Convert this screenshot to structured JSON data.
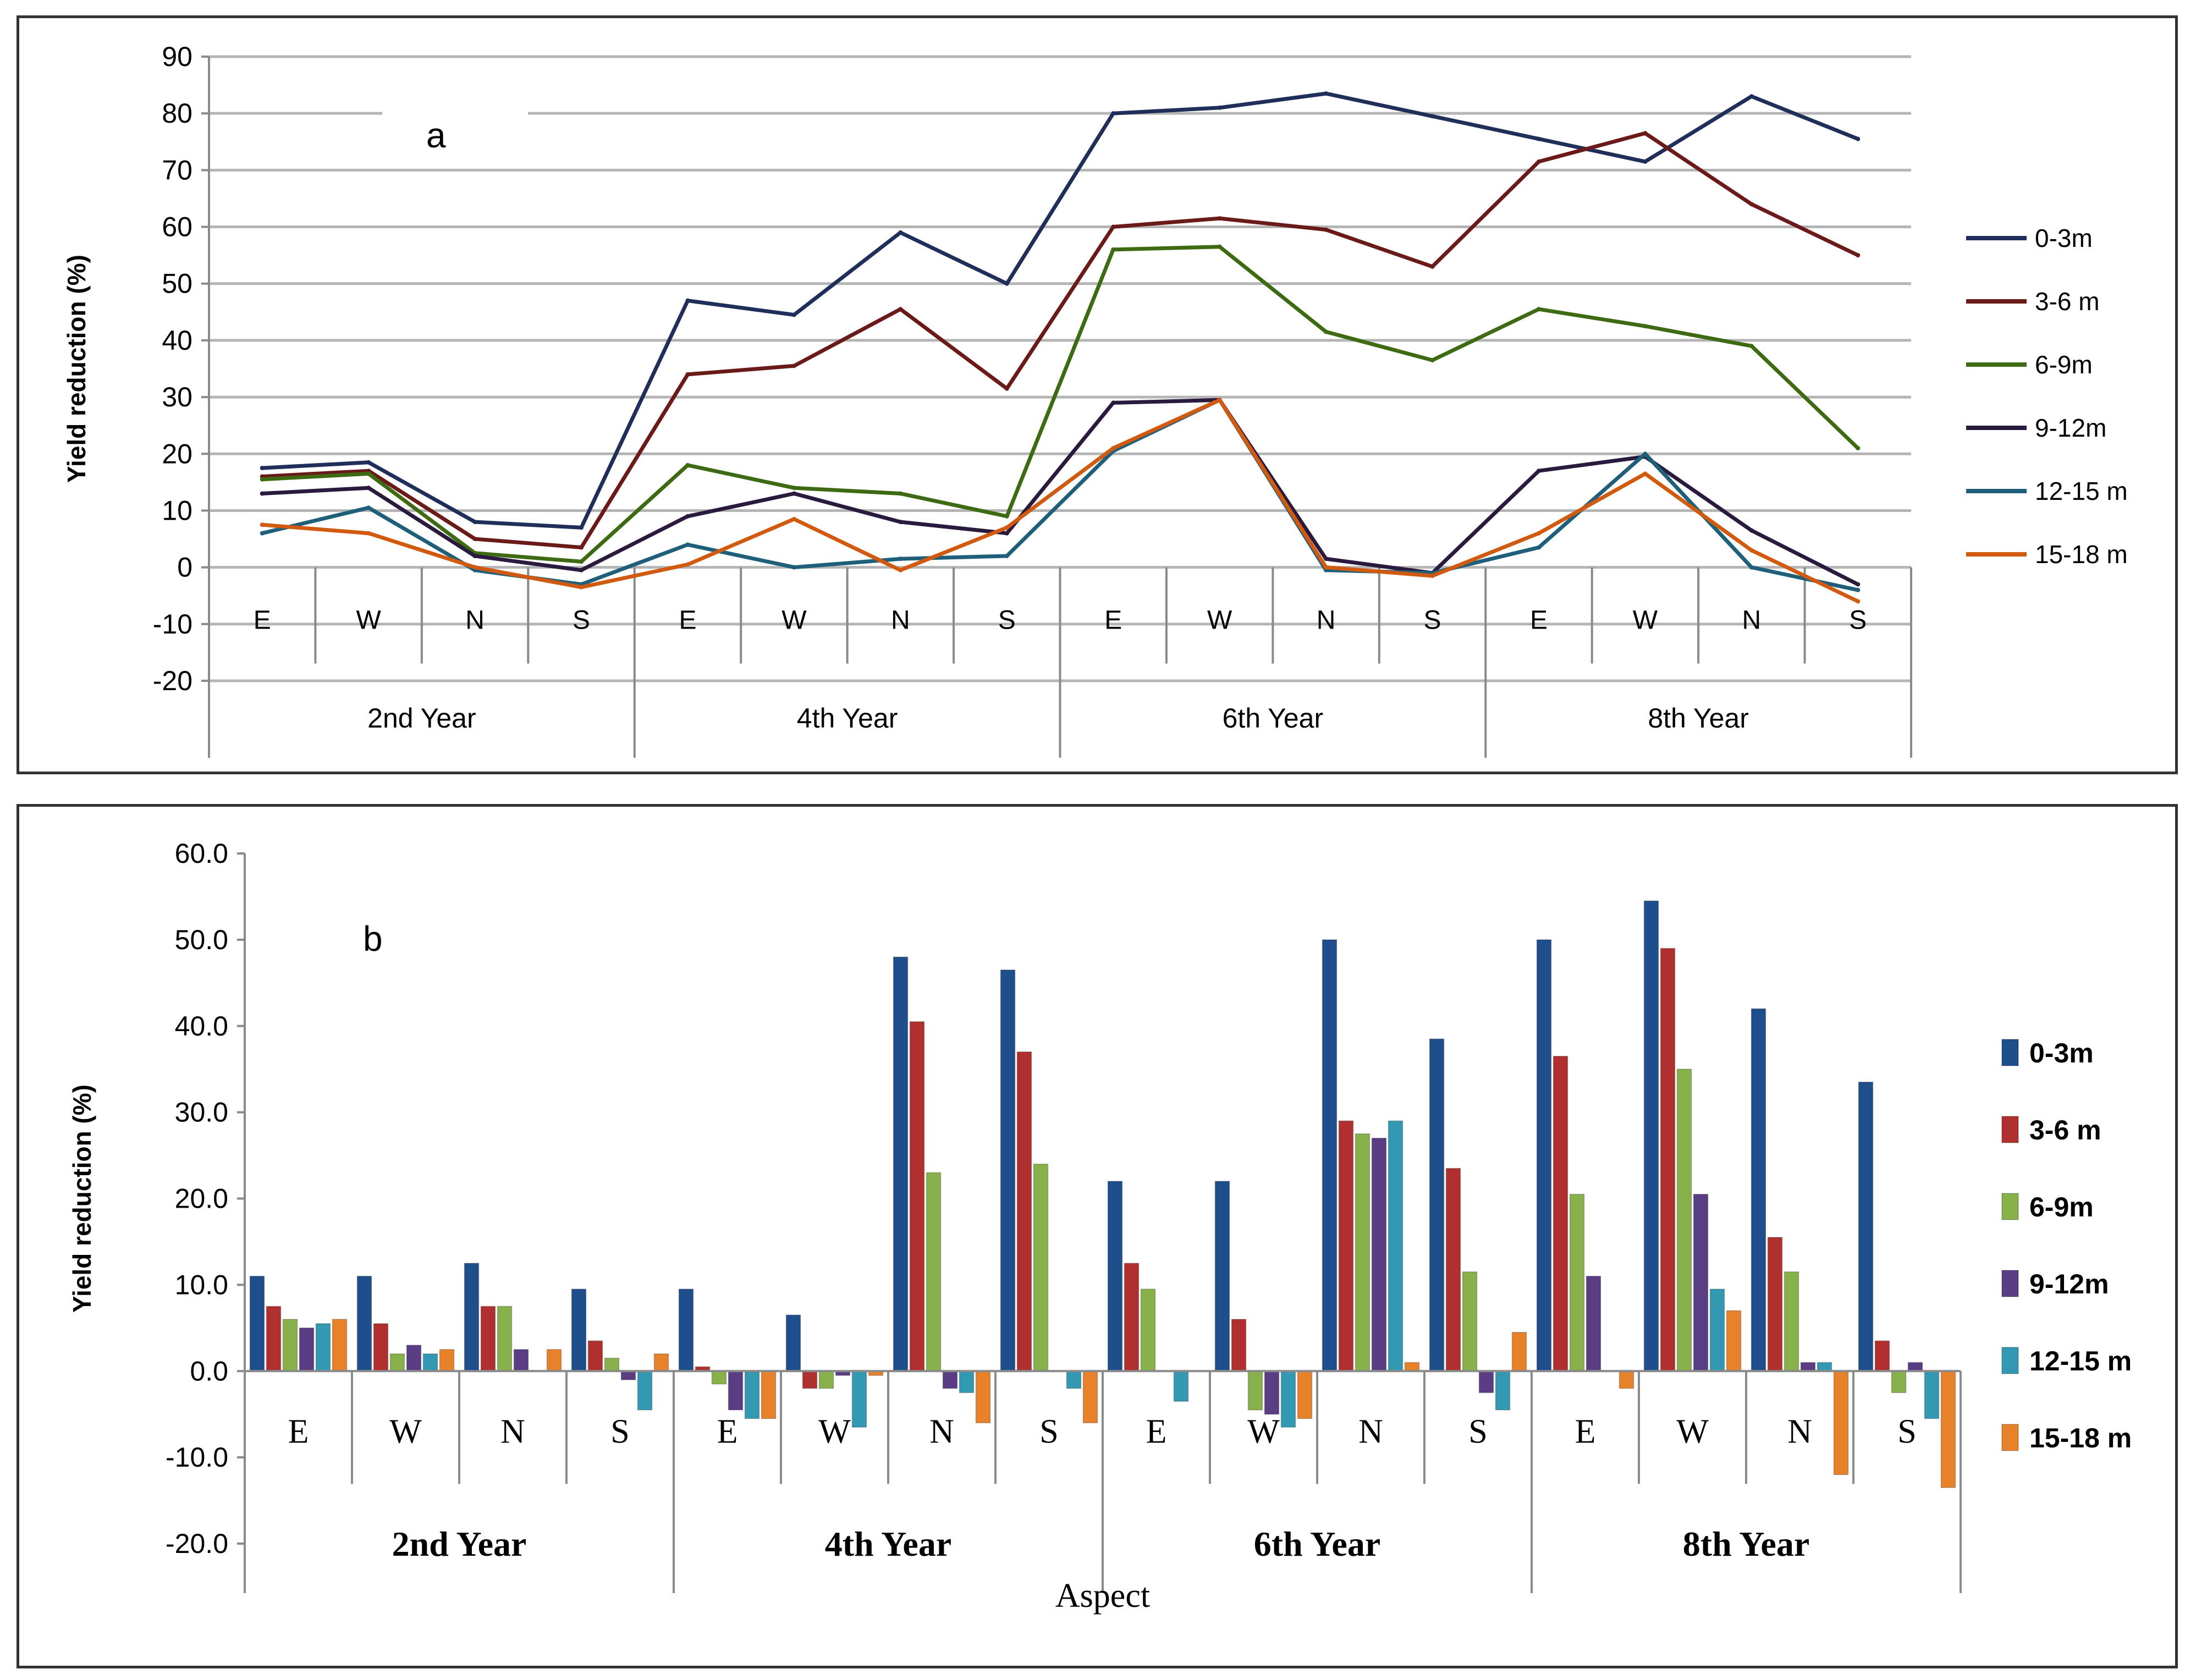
{
  "chart_data": [
    {
      "panel_label": "a",
      "type": "line",
      "title": "",
      "ylabel": "Yield reduction (%)",
      "xlabel": "",
      "ylim": [
        -20,
        90
      ],
      "ytick_step": 10,
      "ytick_labels": [
        "90",
        "80",
        "70",
        "60",
        "50",
        "40",
        "30",
        "20",
        "10",
        "0",
        "-10",
        "-20"
      ],
      "grid": true,
      "legend_position": "right",
      "categories": [
        "E",
        "W",
        "N",
        "S",
        "E",
        "W",
        "N",
        "S",
        "E",
        "W",
        "N",
        "S",
        "E",
        "W",
        "N",
        "S"
      ],
      "groups": [
        "2nd Year",
        "4th Year",
        "6th Year",
        "8th Year"
      ],
      "series": [
        {
          "name": "0-3m",
          "color": "#1f2f5a",
          "values": [
            17.5,
            18.5,
            8,
            7,
            47,
            44.5,
            59,
            50,
            80,
            81,
            83.5,
            79.5,
            75.5,
            71.5,
            83,
            75.5
          ]
        },
        {
          "name": "3-6 m",
          "color": "#6b1a1a",
          "values": [
            16,
            17,
            5,
            3.5,
            34,
            35.5,
            45.5,
            31.5,
            60,
            61.5,
            59.5,
            53,
            71.5,
            76.5,
            64,
            55
          ]
        },
        {
          "name": "6-9m",
          "color": "#3d6a12",
          "values": [
            15.5,
            16.5,
            2.5,
            1,
            18,
            14,
            13,
            9,
            56,
            56.5,
            41.5,
            36.5,
            45.5,
            42.5,
            39,
            21
          ]
        },
        {
          "name": "9-12m",
          "color": "#2a1a3d",
          "values": [
            13,
            14,
            2,
            -0.5,
            9,
            13,
            8,
            6,
            29,
            29.5,
            1.5,
            -1,
            17,
            19.5,
            6.5,
            -3
          ]
        },
        {
          "name": "12-15 m",
          "color": "#1f5f7a",
          "values": [
            6,
            10.5,
            -0.5,
            -3,
            4,
            0,
            1.5,
            2,
            20.5,
            29.5,
            -0.5,
            -1,
            3.5,
            20,
            0,
            -4
          ]
        },
        {
          "name": "15-18 m",
          "color": "#d05a10",
          "values": [
            7.5,
            6,
            0,
            -3.5,
            0.5,
            8.5,
            -0.5,
            7,
            21,
            29.5,
            0,
            -1.5,
            6,
            16.5,
            3,
            -6
          ]
        }
      ]
    },
    {
      "panel_label": "b",
      "type": "bar",
      "title": "",
      "ylabel": "Yield reduction (%)",
      "xlabel": "Aspect",
      "ylim": [
        -20,
        60
      ],
      "ytick_step": 10,
      "ytick_labels": [
        "60.0",
        "50.0",
        "40.0",
        "30.0",
        "20.0",
        "10.0",
        "0.0",
        "-10.0",
        "-20.0"
      ],
      "grid": false,
      "legend_position": "right",
      "categories": [
        "E",
        "W",
        "N",
        "S",
        "E",
        "W",
        "N",
        "S",
        "E",
        "W",
        "N",
        "S",
        "E",
        "W",
        "N",
        "S"
      ],
      "groups": [
        "2nd Year",
        "4th Year",
        "6th Year",
        "8th Year"
      ],
      "series": [
        {
          "name": "0-3m",
          "color": "#1f4e8c",
          "values": [
            11,
            11,
            12.5,
            9.5,
            9.5,
            6.5,
            48,
            46.5,
            22,
            22,
            50,
            38.5,
            50,
            54.5,
            42,
            33.5
          ]
        },
        {
          "name": "3-6 m",
          "color": "#b03030",
          "values": [
            7.5,
            5.5,
            7.5,
            3.5,
            0.5,
            -2,
            40.5,
            37,
            12.5,
            6,
            29,
            23.5,
            36.5,
            49,
            15.5,
            3.5
          ]
        },
        {
          "name": "6-9m",
          "color": "#88b04b",
          "values": [
            6,
            2,
            7.5,
            1.5,
            -1.5,
            -2,
            23,
            24,
            9.5,
            -4.5,
            27.5,
            11.5,
            20.5,
            35,
            11.5,
            -2.5
          ]
        },
        {
          "name": "9-12m",
          "color": "#5a3d82",
          "values": [
            5,
            3,
            2.5,
            -1,
            -4.5,
            -0.5,
            -2,
            0,
            0,
            -5,
            27,
            -2.5,
            11,
            20.5,
            1,
            1
          ]
        },
        {
          "name": "12-15 m",
          "color": "#3399b3",
          "values": [
            5.5,
            2,
            0,
            -4.5,
            -5.5,
            -6.5,
            -2.5,
            -2,
            -3.5,
            -6.5,
            29,
            -4.5,
            0,
            9.5,
            1,
            -5.5
          ]
        },
        {
          "name": "15-18 m",
          "color": "#e8822a",
          "values": [
            6,
            2.5,
            2.5,
            2,
            -5.5,
            -0.5,
            -6,
            -6,
            0,
            -5.5,
            1,
            4.5,
            -2,
            7,
            -12,
            -13.5
          ]
        }
      ]
    }
  ]
}
